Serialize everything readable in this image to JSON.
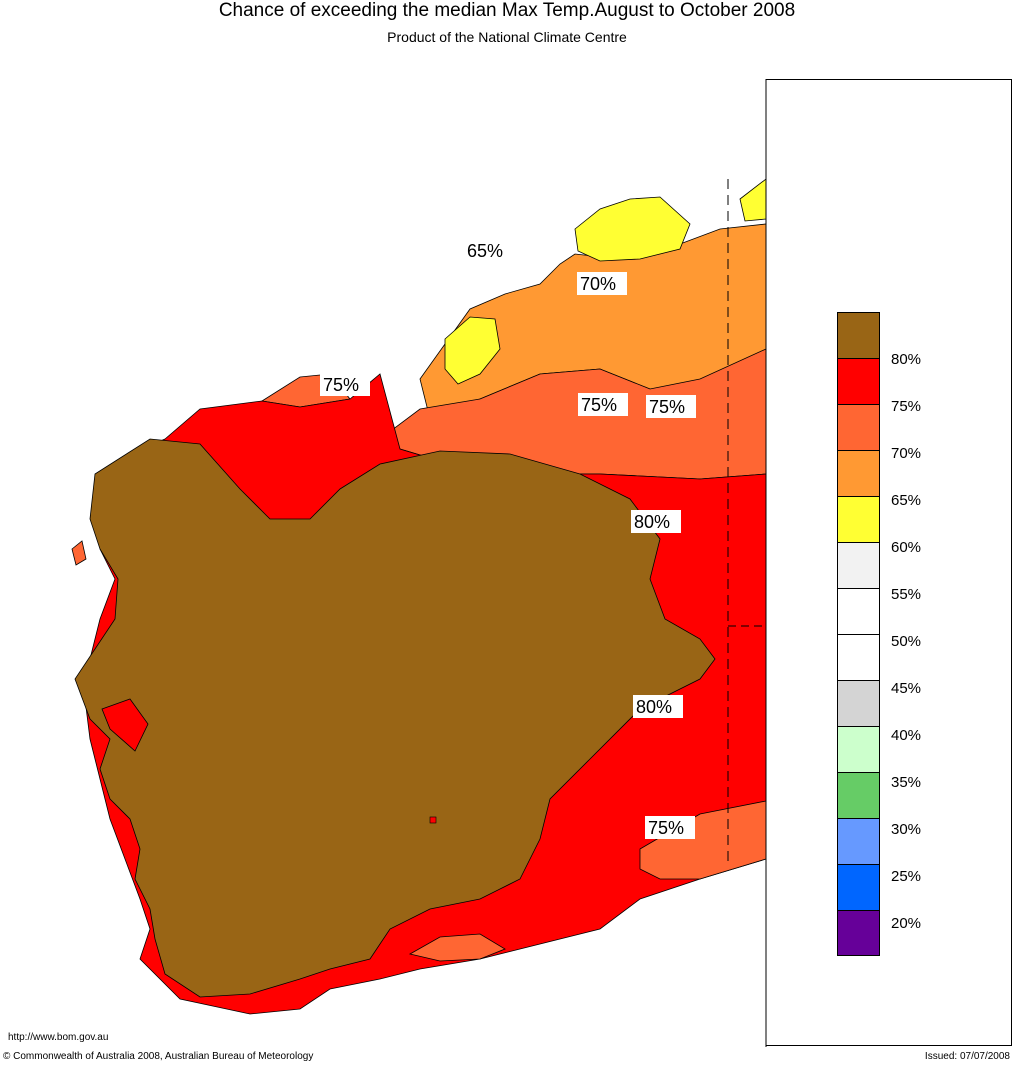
{
  "title": "Chance of exceeding the median Max Temp.August to October 2008",
  "subtitle": "Product of the National Climate Centre",
  "map_labels": [
    "65%",
    "70%",
    "75%",
    "75%",
    "75%",
    "80%",
    "80%",
    "75%"
  ],
  "legend": {
    "colors": [
      "#996515",
      "#ff0000",
      "#ff6633",
      "#ff9933",
      "#ffff33",
      "#f2f2f2",
      "#ffffff",
      "#ffffff",
      "#d4d4d4",
      "#ccffcc",
      "#66cc66",
      "#6699ff",
      "#0066ff",
      "#660099"
    ],
    "labels": [
      "80%",
      "75%",
      "70%",
      "65%",
      "60%",
      "55%",
      "50%",
      "45%",
      "40%",
      "35%",
      "30%",
      "25%",
      "20%"
    ]
  },
  "url": "http://www.bom.gov.au",
  "copyright": "© Commonwealth of Australia 2008, Australian Bureau of Meteorology",
  "issued": "Issued: 07/07/2008"
}
